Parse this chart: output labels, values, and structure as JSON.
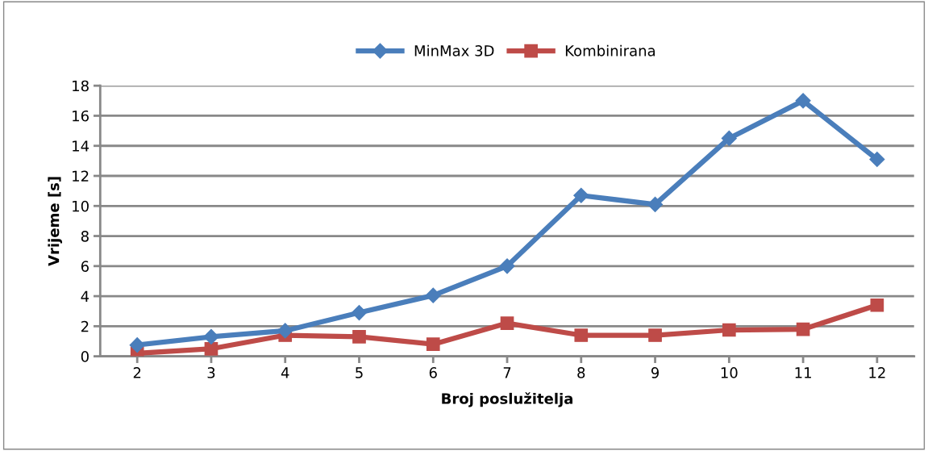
{
  "chart_data": {
    "type": "line",
    "xlabel": "Broj poslužitelja",
    "ylabel": "Vrijeme [s]",
    "categories": [
      "2",
      "3",
      "4",
      "5",
      "6",
      "7",
      "8",
      "9",
      "10",
      "11",
      "12"
    ],
    "series": [
      {
        "name": "MinMax 3D",
        "color": "#4a7ebb",
        "marker": "diamond",
        "values": [
          0.75,
          1.3,
          1.7,
          2.9,
          4.05,
          6.0,
          10.7,
          10.1,
          14.5,
          17.0,
          13.1
        ]
      },
      {
        "name": "Kombinirana",
        "color": "#be4b48",
        "marker": "square",
        "values": [
          0.2,
          0.5,
          1.4,
          1.3,
          0.8,
          2.2,
          1.4,
          1.4,
          1.75,
          1.8,
          3.4
        ]
      }
    ],
    "ylim": [
      0,
      18
    ],
    "yticks": [
      0,
      2,
      4,
      6,
      8,
      10,
      12,
      14,
      16,
      18
    ],
    "grid": "y",
    "legend": "top",
    "line_style": "solid"
  }
}
